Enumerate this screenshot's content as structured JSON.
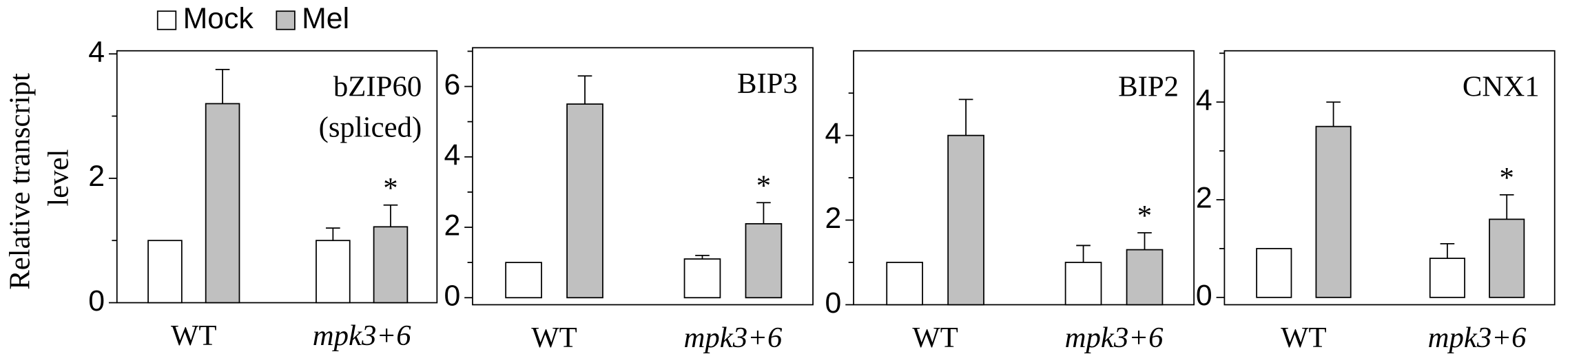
{
  "ylabel": [
    "Relative transcript",
    "level"
  ],
  "chart_data": [
    {
      "type": "bar",
      "annotation": [
        "bZIP60",
        "(spliced)"
      ],
      "categories": [
        "WT",
        "mpk3+6"
      ],
      "series": [
        {
          "name": "Mock",
          "color": "#ffffff",
          "values": [
            1.0,
            1.0
          ],
          "errors": [
            null,
            0.2
          ],
          "labels": [
            null,
            null
          ]
        },
        {
          "name": "Mel",
          "color": "#c0c0c0",
          "values": [
            3.2,
            1.22
          ],
          "errors": [
            0.55,
            0.35
          ],
          "labels": [
            null,
            "*"
          ]
        }
      ],
      "ylim": [
        0,
        4.05
      ],
      "yticks": [
        0,
        2,
        4
      ],
      "minor_yticks": [
        1,
        3
      ]
    },
    {
      "type": "bar",
      "annotation": [
        "BIP3"
      ],
      "categories": [
        "WT",
        "mpk3+6"
      ],
      "series": [
        {
          "name": "Mock",
          "color": "#ffffff",
          "values": [
            1.0,
            1.1
          ],
          "errors": [
            null,
            0.1
          ],
          "labels": [
            null,
            null
          ]
        },
        {
          "name": "Mel",
          "color": "#c0c0c0",
          "values": [
            5.5,
            2.1
          ],
          "errors": [
            0.8,
            0.6
          ],
          "labels": [
            null,
            "*"
          ]
        }
      ],
      "ylim": [
        -0.2,
        7.1
      ],
      "yticks": [
        0,
        2,
        4,
        6
      ],
      "minor_yticks": [
        1,
        3,
        5,
        7
      ]
    },
    {
      "type": "bar",
      "annotation": [
        "BIP2"
      ],
      "categories": [
        "WT",
        "mpk3+6"
      ],
      "series": [
        {
          "name": "Mock",
          "color": "#ffffff",
          "values": [
            1.0,
            1.0
          ],
          "errors": [
            null,
            0.4
          ],
          "labels": [
            null,
            null
          ]
        },
        {
          "name": "Mel",
          "color": "#c0c0c0",
          "values": [
            4.0,
            1.3
          ],
          "errors": [
            0.85,
            0.4
          ],
          "labels": [
            null,
            "*"
          ]
        }
      ],
      "ylim": [
        0,
        6
      ],
      "yticks": [
        0,
        2,
        4
      ],
      "minor_yticks": [
        1,
        3,
        5
      ]
    },
    {
      "type": "bar",
      "annotation": [
        "CNX1"
      ],
      "categories": [
        "WT",
        "mpk3+6"
      ],
      "series": [
        {
          "name": "Mock",
          "color": "#ffffff",
          "values": [
            1.0,
            0.8
          ],
          "errors": [
            null,
            0.3
          ],
          "labels": [
            null,
            null
          ]
        },
        {
          "name": "Mel",
          "color": "#c0c0c0",
          "values": [
            3.5,
            1.6
          ],
          "errors": [
            0.5,
            0.5
          ],
          "labels": [
            null,
            "*"
          ]
        }
      ],
      "ylim": [
        -0.15,
        5.05
      ],
      "yticks": [
        0,
        2,
        4
      ],
      "minor_yticks": [
        1,
        3,
        5
      ]
    }
  ]
}
